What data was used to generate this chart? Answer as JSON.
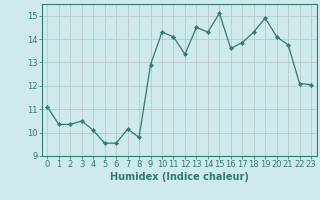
{
  "x": [
    0,
    1,
    2,
    3,
    4,
    5,
    6,
    7,
    8,
    9,
    10,
    11,
    12,
    13,
    14,
    15,
    16,
    17,
    18,
    19,
    20,
    21,
    22,
    23
  ],
  "y": [
    11.1,
    10.35,
    10.35,
    10.5,
    10.1,
    9.55,
    9.55,
    10.15,
    9.8,
    12.9,
    14.3,
    14.1,
    13.35,
    14.5,
    14.3,
    15.1,
    13.6,
    13.85,
    14.3,
    14.9,
    14.1,
    13.75,
    12.1,
    12.05
  ],
  "line_color": "#2e7d6e",
  "marker": "D",
  "marker_size": 2.0,
  "bg_color": "#ceeaea",
  "major_grid_color": "#b8c8c8",
  "minor_grid_color": "#d8e8e8",
  "xlabel": "Humidex (Indice chaleur)",
  "xlim": [
    -0.5,
    23.5
  ],
  "ylim": [
    9.0,
    15.5
  ],
  "yticks": [
    9,
    10,
    11,
    12,
    13,
    14,
    15
  ],
  "xticks": [
    0,
    1,
    2,
    3,
    4,
    5,
    6,
    7,
    8,
    9,
    10,
    11,
    12,
    13,
    14,
    15,
    16,
    17,
    18,
    19,
    20,
    21,
    22,
    23
  ],
  "tick_color": "#2e7d6e",
  "label_color": "#2e7d6e",
  "font_size_ticks": 6.0,
  "font_size_label": 7.0
}
